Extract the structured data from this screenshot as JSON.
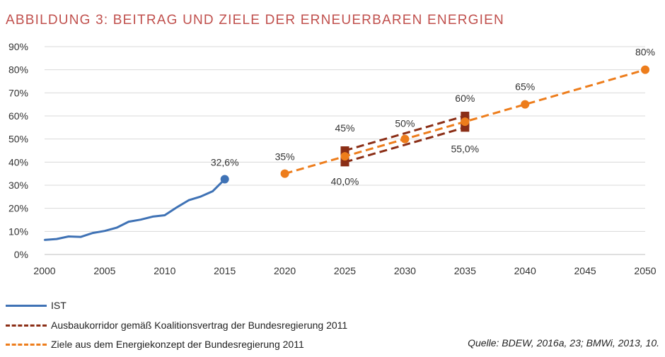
{
  "title": "ABBILDUNG 3: BEITRAG UND ZIELE DER ERNEUERBAREN ENERGIEN",
  "source": "Quelle: BDEW, 2016a, 23; BMWi, 2013, 10.",
  "colors": {
    "ist": "#3f72b5",
    "korridor": "#8b2e16",
    "ziele": "#ed7d1c",
    "title": "#c0504d",
    "grid": "#d9d9d9"
  },
  "chart_data": {
    "type": "line",
    "xlim": [
      2000,
      2050
    ],
    "ylim": [
      0,
      90
    ],
    "x_ticks": [
      2000,
      2005,
      2010,
      2015,
      2020,
      2025,
      2030,
      2035,
      2040,
      2045,
      2050
    ],
    "y_ticks": [
      0,
      10,
      20,
      30,
      40,
      50,
      60,
      70,
      80,
      90
    ],
    "y_tick_labels": [
      "0%",
      "10%",
      "20%",
      "30%",
      "40%",
      "50%",
      "60%",
      "70%",
      "80%",
      "90%"
    ],
    "grid": true,
    "legend_position": "bottom-left",
    "series": [
      {
        "name": "IST",
        "style": "solid",
        "x": [
          2000,
          2001,
          2002,
          2003,
          2004,
          2005,
          2006,
          2007,
          2008,
          2009,
          2010,
          2011,
          2012,
          2013,
          2014,
          2015
        ],
        "y": [
          6.3,
          6.7,
          7.8,
          7.6,
          9.3,
          10.2,
          11.6,
          14.2,
          15.1,
          16.4,
          17.0,
          20.4,
          23.5,
          25.1,
          27.4,
          32.6
        ]
      },
      {
        "name": "Ausbaukorridor gemäß Koalitionsvertrag der Bundesregierung 2011",
        "style": "dashed",
        "lines": [
          {
            "x": [
              2025,
              2035
            ],
            "y": [
              40,
              55
            ]
          },
          {
            "x": [
              2025,
              2035
            ],
            "y": [
              45,
              60
            ]
          }
        ]
      },
      {
        "name": "Ziele aus dem Energiekonzept der Bundesregierung 2011",
        "style": "dashed",
        "x": [
          2020,
          2025,
          2030,
          2035,
          2040,
          2050
        ],
        "y": [
          35,
          42.5,
          50,
          57.5,
          65,
          80
        ]
      }
    ],
    "annotations": [
      {
        "text": "32,6%",
        "x": 2015,
        "y": 32.6
      },
      {
        "text": "35%",
        "x": 2020,
        "y": 35
      },
      {
        "text": "45%",
        "x": 2025,
        "y": 45
      },
      {
        "text": "40,0%",
        "x": 2025,
        "y": 40
      },
      {
        "text": "50%",
        "x": 2030,
        "y": 50
      },
      {
        "text": "60%",
        "x": 2035,
        "y": 60
      },
      {
        "text": "55,0%",
        "x": 2035,
        "y": 55
      },
      {
        "text": "65%",
        "x": 2040,
        "y": 65
      },
      {
        "text": "80%",
        "x": 2050,
        "y": 80
      }
    ]
  }
}
